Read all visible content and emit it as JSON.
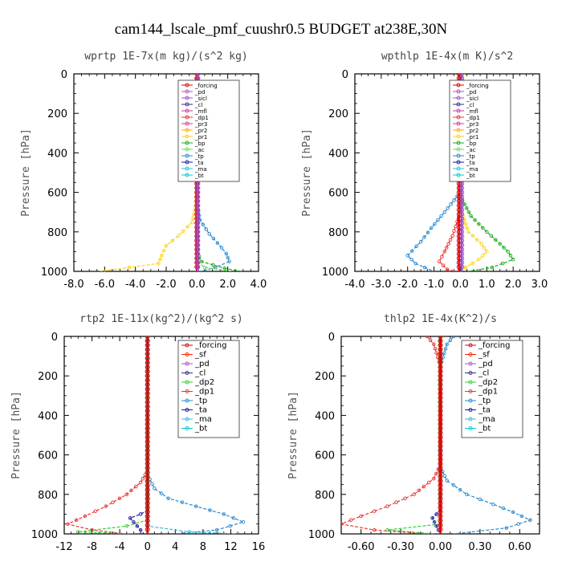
{
  "figure": {
    "title": "cam144_lscale_pmf_cuushr0.5  BUDGET at238E,30N"
  },
  "colors": {
    "_forcing": "#dd0000",
    "_pd": "#b04fc4",
    "_sicl": "#9a50c8",
    "_cl": "#3a2a8a",
    "_mfl": "#cc3a99",
    "_dp1": "#ee3333",
    "_pr3": "#d23d8c",
    "_pr2": "#ffa800",
    "_pr1": "#ffd21a",
    "_bp": "#1aaa1a",
    "_ac": "#66dd55",
    "_tp": "#2a8ad0",
    "_ta": "#1a1a99",
    "_ma": "#33bbdd",
    "_bt": "#00cccc",
    "_sf": "#ff2200",
    "_dp2": "#33cc33",
    "_forcing_wp": "#333333"
  },
  "chart_data": [
    {
      "type": "line",
      "title": "wprtp   1E-7x(m kg)/(s^2 kg)",
      "ylabel": "Pressure [hPa]",
      "xlabel": "",
      "xlim": [
        -8,
        4
      ],
      "ylim": [
        1000,
        0
      ],
      "xticks": [
        "-8.0",
        "-6.0",
        "-4.0",
        "-2.0",
        "0.0",
        "2.0",
        "4.0"
      ],
      "yticks": [
        "0",
        "200",
        "400",
        "600",
        "800",
        "1000"
      ],
      "legend_position": "top-right",
      "legend": [
        "_forcing",
        "_pd",
        "_sicl",
        "_cl",
        "_mfl",
        "_dp1",
        "_pr3",
        "_pr2",
        "_pr1",
        "_bp",
        "_ac",
        "_tp",
        "_ta",
        "_ma",
        "_bt"
      ],
      "series": [
        {
          "name": "_pr1",
          "points": [
            [
              0,
              0
            ],
            [
              0,
              400
            ],
            [
              -0.05,
              650
            ],
            [
              -0.3,
              750
            ],
            [
              -1.2,
              820
            ],
            [
              -2.0,
              870
            ],
            [
              -2.3,
              920
            ],
            [
              -2.5,
              960
            ],
            [
              -6.3,
              1000
            ]
          ]
        },
        {
          "name": "_tp",
          "points": [
            [
              0,
              0
            ],
            [
              0,
              650
            ],
            [
              0.2,
              740
            ],
            [
              0.8,
              810
            ],
            [
              1.6,
              880
            ],
            [
              1.9,
              910
            ],
            [
              2.1,
              950
            ],
            [
              1.2,
              980
            ],
            [
              0.2,
              1000
            ]
          ]
        },
        {
          "name": "_bp",
          "points": [
            [
              0,
              0
            ],
            [
              0,
              900
            ],
            [
              0.3,
              950
            ],
            [
              1.8,
              985
            ],
            [
              2.9,
              1000
            ]
          ]
        },
        {
          "name": "_ac",
          "points": [
            [
              0,
              0
            ],
            [
              0,
              950
            ],
            [
              0.5,
              980
            ],
            [
              2.2,
              1000
            ]
          ]
        },
        {
          "name": "_forcing",
          "points": [
            [
              0,
              0
            ],
            [
              0,
              1000
            ]
          ]
        },
        {
          "name": "_sicl",
          "points": [
            [
              0.05,
              0
            ],
            [
              0.05,
              1000
            ]
          ]
        }
      ]
    },
    {
      "type": "line",
      "title": "wpthlp   1E-4x(m K)/s^2",
      "ylabel": "Pressure [hPa]",
      "xlabel": "",
      "xlim": [
        -4,
        3
      ],
      "ylim": [
        1000,
        0
      ],
      "xticks": [
        "-4.0",
        "-3.0",
        "-2.0",
        "-1.0",
        "0.0",
        "1.0",
        "2.0",
        "3.0"
      ],
      "yticks": [
        "0",
        "200",
        "400",
        "600",
        "800",
        "1000"
      ],
      "legend_position": "top-right",
      "legend": [
        "_forcing",
        "_pd",
        "_sicl",
        "_cl",
        "_mfl",
        "_dp1",
        "_pr3",
        "_pr2",
        "_pr1",
        "_bp",
        "_ac",
        "_tp",
        "_ta",
        "_ma",
        "_bt"
      ],
      "series": [
        {
          "name": "_pr1",
          "points": [
            [
              0.1,
              0
            ],
            [
              0.05,
              50
            ],
            [
              0,
              300
            ],
            [
              0.05,
              700
            ],
            [
              0.3,
              800
            ],
            [
              0.8,
              860
            ],
            [
              1.0,
              900
            ],
            [
              0.7,
              940
            ],
            [
              0.2,
              980
            ],
            [
              0,
              1000
            ]
          ]
        },
        {
          "name": "_tp",
          "points": [
            [
              0,
              0
            ],
            [
              0,
              600
            ],
            [
              -0.6,
              700
            ],
            [
              -1.1,
              780
            ],
            [
              -1.5,
              850
            ],
            [
              -2.0,
              920
            ],
            [
              -1.7,
              960
            ],
            [
              -1.0,
              1000
            ]
          ]
        },
        {
          "name": "_bp",
          "points": [
            [
              0,
              0
            ],
            [
              0,
              620
            ],
            [
              0.4,
              720
            ],
            [
              1.0,
              800
            ],
            [
              1.5,
              860
            ],
            [
              1.8,
              900
            ],
            [
              2.0,
              940
            ],
            [
              1.2,
              980
            ],
            [
              0.3,
              1000
            ]
          ]
        },
        {
          "name": "_dp1",
          "points": [
            [
              0,
              0
            ],
            [
              0,
              700
            ],
            [
              -0.3,
              820
            ],
            [
              -0.6,
              900
            ],
            [
              -0.8,
              950
            ],
            [
              -0.5,
              990
            ],
            [
              -0.2,
              1000
            ]
          ]
        },
        {
          "name": "_forcing",
          "points": [
            [
              -0.05,
              0
            ],
            [
              -0.05,
              1000
            ]
          ]
        },
        {
          "name": "_sicl",
          "points": [
            [
              0.05,
              0
            ],
            [
              0.05,
              1000
            ]
          ]
        }
      ]
    },
    {
      "type": "line",
      "title": "rtp2   1E-11x(kg^2)/(kg^2 s)",
      "ylabel": "Pressure [hPa]",
      "xlabel": "",
      "xlim": [
        -12,
        16
      ],
      "ylim": [
        1000,
        0
      ],
      "xticks": [
        "-12",
        "-8",
        "-4",
        "0",
        "4",
        "8",
        "12",
        "16"
      ],
      "yticks": [
        "0",
        "200",
        "400",
        "600",
        "800",
        "1000"
      ],
      "legend_position": "top-right",
      "legend": [
        "_forcing",
        "_sf",
        "_pd",
        "_cl",
        "_dp2",
        "_dp1",
        "_tp",
        "_ta",
        "_ma",
        "_bt"
      ],
      "series": [
        {
          "name": "_dp1",
          "points": [
            [
              0,
              0
            ],
            [
              0,
              680
            ],
            [
              -1,
              740
            ],
            [
              -3,
              800
            ],
            [
              -6,
              860
            ],
            [
              -9,
              910
            ],
            [
              -11.5,
              950
            ],
            [
              -8,
              980
            ],
            [
              -3,
              1000
            ]
          ]
        },
        {
          "name": "_tp",
          "points": [
            [
              0,
              0
            ],
            [
              0,
              700
            ],
            [
              1,
              770
            ],
            [
              3,
              820
            ],
            [
              7,
              860
            ],
            [
              11,
              900
            ],
            [
              13.8,
              940
            ],
            [
              10,
              980
            ],
            [
              4,
              1000
            ]
          ]
        },
        {
          "name": "_ta",
          "points": [
            [
              0,
              0
            ],
            [
              0,
              880
            ],
            [
              -1,
              900
            ],
            [
              -2.5,
              920
            ],
            [
              -1.5,
              960
            ],
            [
              -0.5,
              1000
            ]
          ]
        },
        {
          "name": "_dp2",
          "points": [
            [
              0,
              0
            ],
            [
              0,
              930
            ],
            [
              -3,
              960
            ],
            [
              -10,
              990
            ],
            [
              -2,
              1000
            ]
          ]
        },
        {
          "name": "_ma",
          "points": [
            [
              0,
              0
            ],
            [
              0,
              960
            ],
            [
              6,
              990
            ],
            [
              13,
              1000
            ]
          ]
        },
        {
          "name": "_forcing",
          "points": [
            [
              0,
              0
            ],
            [
              0,
              1000
            ]
          ]
        }
      ]
    },
    {
      "type": "line",
      "title": "thlp2   1E-4x(K^2)/s",
      "ylabel": "Pressure [hPa]",
      "xlabel": "",
      "xlim": [
        -0.75,
        0.75
      ],
      "ylim": [
        1000,
        0
      ],
      "xticks": [
        "-0.60",
        "-0.30",
        "0.00",
        "0.30",
        "0.60"
      ],
      "yticks": [
        "0",
        "200",
        "400",
        "600",
        "800",
        "1000"
      ],
      "legend_position": "top-right",
      "legend": [
        "_forcing",
        "_sf",
        "_pd",
        "_cl",
        "_dp2",
        "_dp1",
        "_tp",
        "_ta",
        "_ma",
        "_bt"
      ],
      "series": [
        {
          "name": "_dp1",
          "points": [
            [
              -0.1,
              0
            ],
            [
              -0.05,
              40
            ],
            [
              0,
              150
            ],
            [
              0,
              650
            ],
            [
              -0.05,
              720
            ],
            [
              -0.2,
              800
            ],
            [
              -0.4,
              860
            ],
            [
              -0.6,
              910
            ],
            [
              -0.75,
              950
            ],
            [
              -0.5,
              980
            ],
            [
              -0.1,
              1000
            ]
          ]
        },
        {
          "name": "_tp",
          "points": [
            [
              0.1,
              0
            ],
            [
              0.05,
              40
            ],
            [
              0,
              150
            ],
            [
              0,
              660
            ],
            [
              0.05,
              730
            ],
            [
              0.2,
              800
            ],
            [
              0.4,
              850
            ],
            [
              0.55,
              890
            ],
            [
              0.68,
              930
            ],
            [
              0.5,
              970
            ],
            [
              0.1,
              1000
            ]
          ]
        },
        {
          "name": "_ta",
          "points": [
            [
              0,
              0
            ],
            [
              0,
              880
            ],
            [
              -0.06,
              920
            ],
            [
              -0.03,
              960
            ],
            [
              0,
              1000
            ]
          ]
        },
        {
          "name": "_dp2",
          "points": [
            [
              0,
              0
            ],
            [
              0,
              950
            ],
            [
              -0.4,
              980
            ],
            [
              -0.05,
              1000
            ]
          ]
        },
        {
          "name": "_forcing",
          "points": [
            [
              0,
              0
            ],
            [
              0,
              1000
            ]
          ]
        }
      ]
    }
  ]
}
